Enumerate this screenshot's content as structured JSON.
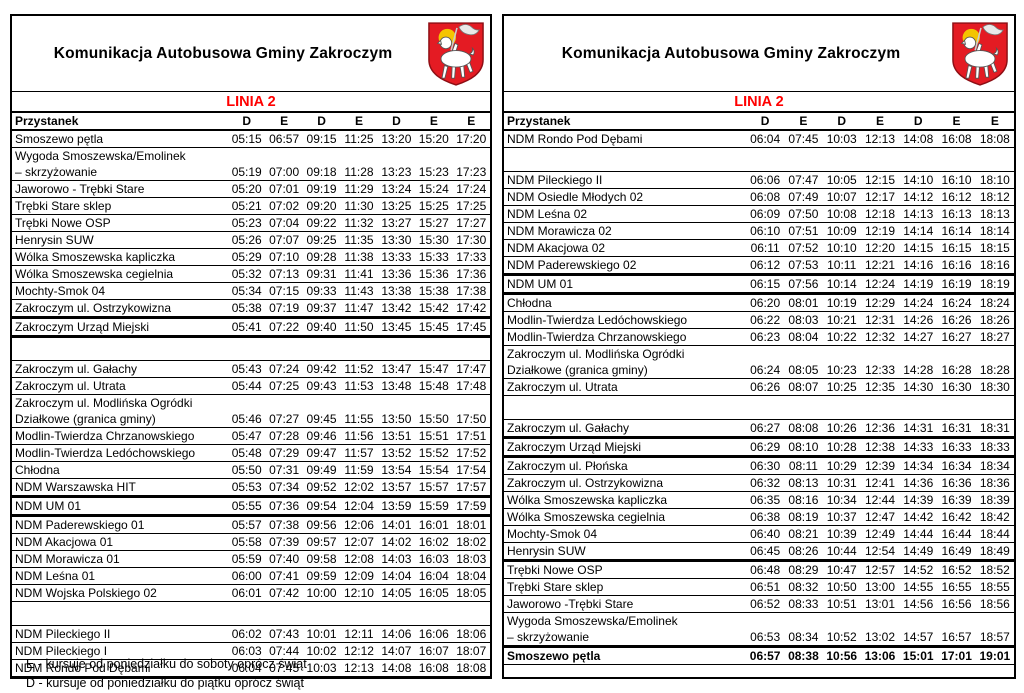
{
  "accent_red": "#ff0000",
  "crest": {
    "shield": "#e41b23",
    "shield_border": "#8d0e14",
    "halo": "#f4c400",
    "lamb": "#ffffff",
    "banner": "#e9e9e9",
    "outline": "#555555"
  },
  "footnotes": [
    "E - kursuje od poniedziałku do soboty oprócz świąt",
    "D - kursuje od poniedziałku do piątku oprócz świąt"
  ],
  "panels": [
    {
      "title": "Komunikacja Autobusowa Gminy Zakroczym",
      "line_label": "LINIA 2",
      "table": {
        "stop_header": "Przystanek",
        "day_codes": [
          "D",
          "E",
          "D",
          "E",
          "D",
          "E",
          "E"
        ],
        "rows": [
          {
            "stop": "Smoszewo pętla",
            "times": [
              "05:15",
              "06:57",
              "09:15",
              "11:25",
              "13:20",
              "15:20",
              "17:20"
            ]
          },
          {
            "lines": [
              "Wygoda Smoszewska/Emolinek",
              "– skrzyżowanie"
            ],
            "times": [
              "05:19",
              "07:00",
              "09:18",
              "11:28",
              "13:23",
              "15:23",
              "17:23"
            ]
          },
          {
            "stop": "Jaworowo - Trębki Stare",
            "times": [
              "05:20",
              "07:01",
              "09:19",
              "11:29",
              "13:24",
              "15:24",
              "17:24"
            ]
          },
          {
            "stop": "Trębki Stare sklep",
            "times": [
              "05:21",
              "07:02",
              "09:20",
              "11:30",
              "13:25",
              "15:25",
              "17:25"
            ]
          },
          {
            "stop": "Trębki Nowe OSP",
            "times": [
              "05:23",
              "07:04",
              "09:22",
              "11:32",
              "13:27",
              "15:27",
              "17:27"
            ]
          },
          {
            "stop": "Henrysin SUW",
            "times": [
              "05:26",
              "07:07",
              "09:25",
              "11:35",
              "13:30",
              "15:30",
              "17:30"
            ]
          },
          {
            "stop": "Wólka Smoszewska kapliczka",
            "times": [
              "05:29",
              "07:10",
              "09:28",
              "11:38",
              "13:33",
              "15:33",
              "17:33"
            ]
          },
          {
            "stop": "Wólka Smoszewska cegielnia",
            "times": [
              "05:32",
              "07:13",
              "09:31",
              "11:41",
              "13:36",
              "15:36",
              "17:36"
            ]
          },
          {
            "stop": "Mochty-Smok 04",
            "times": [
              "05:34",
              "07:15",
              "09:33",
              "11:43",
              "13:38",
              "15:38",
              "17:38"
            ]
          },
          {
            "stop": "Zakroczym ul. Ostrzykowizna",
            "times": [
              "05:38",
              "07:19",
              "09:37",
              "11:47",
              "13:42",
              "15:42",
              "17:42"
            ]
          },
          {
            "stop": "Zakroczym Urząd Miejski",
            "emph": true,
            "times": [
              "05:41",
              "07:22",
              "09:40",
              "11:50",
              "13:45",
              "15:45",
              "17:45"
            ]
          },
          {
            "gap": true
          },
          {
            "stop": "Zakroczym ul. Gałachy",
            "times": [
              "05:43",
              "07:24",
              "09:42",
              "11:52",
              "13:47",
              "15:47",
              "17:47"
            ]
          },
          {
            "stop": "Zakroczym ul. Utrata",
            "times": [
              "05:44",
              "07:25",
              "09:43",
              "11:53",
              "13:48",
              "15:48",
              "17:48"
            ]
          },
          {
            "lines": [
              "Zakroczym ul. Modlińska Ogródki",
              "Działkowe (granica gminy)"
            ],
            "times": [
              "05:46",
              "07:27",
              "09:45",
              "11:55",
              "13:50",
              "15:50",
              "17:50"
            ]
          },
          {
            "stop": "Modlin-Twierdza Chrzanowskiego",
            "times": [
              "05:47",
              "07:28",
              "09:46",
              "11:56",
              "13:51",
              "15:51",
              "17:51"
            ]
          },
          {
            "stop": "Modlin-Twierdza Ledóchowskiego",
            "times": [
              "05:48",
              "07:29",
              "09:47",
              "11:57",
              "13:52",
              "15:52",
              "17:52"
            ]
          },
          {
            "stop": "Chłodna",
            "times": [
              "05:50",
              "07:31",
              "09:49",
              "11:59",
              "13:54",
              "15:54",
              "17:54"
            ]
          },
          {
            "stop": "NDM Warszawska HIT",
            "times": [
              "05:53",
              "07:34",
              "09:52",
              "12:02",
              "13:57",
              "15:57",
              "17:57"
            ]
          },
          {
            "stop": "NDM UM 01",
            "emph": true,
            "times": [
              "05:55",
              "07:36",
              "09:54",
              "12:04",
              "13:59",
              "15:59",
              "17:59"
            ]
          },
          {
            "stop": "NDM Paderewskiego 01",
            "times": [
              "05:57",
              "07:38",
              "09:56",
              "12:06",
              "14:01",
              "16:01",
              "18:01"
            ]
          },
          {
            "stop": "NDM Akacjowa 01",
            "times": [
              "05:58",
              "07:39",
              "09:57",
              "12:07",
              "14:02",
              "16:02",
              "18:02"
            ]
          },
          {
            "stop": "NDM Morawicza 01",
            "times": [
              "05:59",
              "07:40",
              "09:58",
              "12:08",
              "14:03",
              "16:03",
              "18:03"
            ]
          },
          {
            "stop": "NDM Leśna 01",
            "times": [
              "06:00",
              "07:41",
              "09:59",
              "12:09",
              "14:04",
              "16:04",
              "18:04"
            ]
          },
          {
            "stop": "NDM Wojska Polskiego 02",
            "times": [
              "06:01",
              "07:42",
              "10:00",
              "12:10",
              "14:05",
              "16:05",
              "18:05"
            ]
          },
          {
            "gap": true
          },
          {
            "stop": "NDM Pileckiego II",
            "times": [
              "06:02",
              "07:43",
              "10:01",
              "12:11",
              "14:06",
              "16:06",
              "18:06"
            ]
          },
          {
            "stop": "NDM Pileckiego I",
            "times": [
              "06:03",
              "07:44",
              "10:02",
              "12:12",
              "14:07",
              "16:07",
              "18:07"
            ]
          },
          {
            "stop": "NDM Rondo Pod Dębami",
            "times": [
              "06:04",
              "07:45",
              "10:03",
              "12:13",
              "14:08",
              "16:08",
              "18:08"
            ]
          }
        ]
      }
    },
    {
      "title": "Komunikacja Autobusowa Gminy Zakroczym",
      "line_label": "LINIA 2",
      "table": {
        "stop_header": "Przystanek",
        "day_codes": [
          "D",
          "E",
          "D",
          "E",
          "D",
          "E",
          "E"
        ],
        "rows": [
          {
            "stop": "NDM Rondo Pod Dębami",
            "times": [
              "06:04",
              "07:45",
              "10:03",
              "12:13",
              "14:08",
              "16:08",
              "18:08"
            ]
          },
          {
            "gap": true
          },
          {
            "stop": "NDM Pileckiego II",
            "times": [
              "06:06",
              "07:47",
              "10:05",
              "12:15",
              "14:10",
              "16:10",
              "18:10"
            ]
          },
          {
            "stop": "NDM Osiedle Młodych 02",
            "times": [
              "06:08",
              "07:49",
              "10:07",
              "12:17",
              "14:12",
              "16:12",
              "18:12"
            ]
          },
          {
            "stop": "NDM Leśna 02",
            "times": [
              "06:09",
              "07:50",
              "10:08",
              "12:18",
              "14:13",
              "16:13",
              "18:13"
            ]
          },
          {
            "stop": "NDM Morawicza 02",
            "times": [
              "06:10",
              "07:51",
              "10:09",
              "12:19",
              "14:14",
              "16:14",
              "18:14"
            ]
          },
          {
            "stop": "NDM Akacjowa 02",
            "times": [
              "06:11",
              "07:52",
              "10:10",
              "12:20",
              "14:15",
              "16:15",
              "18:15"
            ]
          },
          {
            "stop": "NDM Paderewskiego 02",
            "times": [
              "06:12",
              "07:53",
              "10:11",
              "12:21",
              "14:16",
              "16:16",
              "18:16"
            ]
          },
          {
            "stop": "NDM UM 01",
            "emph": true,
            "times": [
              "06:15",
              "07:56",
              "10:14",
              "12:24",
              "14:19",
              "16:19",
              "18:19"
            ]
          },
          {
            "stop": "Chłodna",
            "times": [
              "06:20",
              "08:01",
              "10:19",
              "12:29",
              "14:24",
              "16:24",
              "18:24"
            ]
          },
          {
            "stop": "Modlin-Twierdza Ledóchowskiego",
            "times": [
              "06:22",
              "08:03",
              "10:21",
              "12:31",
              "14:26",
              "16:26",
              "18:26"
            ]
          },
          {
            "stop": "Modlin-Twierdza Chrzanowskiego",
            "times": [
              "06:23",
              "08:04",
              "10:22",
              "12:32",
              "14:27",
              "16:27",
              "18:27"
            ]
          },
          {
            "lines": [
              "Zakroczym ul. Modlińska Ogródki",
              "Działkowe (granica gminy)"
            ],
            "times": [
              "06:24",
              "08:05",
              "10:23",
              "12:33",
              "14:28",
              "16:28",
              "18:28"
            ]
          },
          {
            "stop": "Zakroczym ul. Utrata",
            "times": [
              "06:26",
              "08:07",
              "10:25",
              "12:35",
              "14:30",
              "16:30",
              "18:30"
            ]
          },
          {
            "gap": true
          },
          {
            "stop": "Zakroczym ul. Gałachy",
            "times": [
              "06:27",
              "08:08",
              "10:26",
              "12:36",
              "14:31",
              "16:31",
              "18:31"
            ]
          },
          {
            "stop": "Zakroczym Urząd Miejski",
            "emph": true,
            "times": [
              "06:29",
              "08:10",
              "10:28",
              "12:38",
              "14:33",
              "16:33",
              "18:33"
            ]
          },
          {
            "stop": "Zakroczym ul. Płońska",
            "times": [
              "06:30",
              "08:11",
              "10:29",
              "12:39",
              "14:34",
              "16:34",
              "18:34"
            ]
          },
          {
            "stop": "Zakroczym ul. Ostrzykowizna",
            "times": [
              "06:32",
              "08:13",
              "10:31",
              "12:41",
              "14:36",
              "16:36",
              "18:36"
            ]
          },
          {
            "stop": "Wólka Smoszewska kapliczka",
            "times": [
              "06:35",
              "08:16",
              "10:34",
              "12:44",
              "14:39",
              "16:39",
              "18:39"
            ]
          },
          {
            "stop": "Wólka Smoszewska cegielnia",
            "times": [
              "06:38",
              "08:19",
              "10:37",
              "12:47",
              "14:42",
              "16:42",
              "18:42"
            ]
          },
          {
            "stop": "Mochty-Smok 04",
            "times": [
              "06:40",
              "08:21",
              "10:39",
              "12:49",
              "14:44",
              "16:44",
              "18:44"
            ]
          },
          {
            "stop": "Henrysin SUW",
            "times": [
              "06:45",
              "08:26",
              "10:44",
              "12:54",
              "14:49",
              "16:49",
              "18:49"
            ]
          },
          {
            "stop": "Trębki Nowe OSP",
            "btop": true,
            "times": [
              "06:48",
              "08:29",
              "10:47",
              "12:57",
              "14:52",
              "16:52",
              "18:52"
            ]
          },
          {
            "stop": "Trębki Stare sklep",
            "times": [
              "06:51",
              "08:32",
              "10:50",
              "13:00",
              "14:55",
              "16:55",
              "18:55"
            ]
          },
          {
            "stop": "Jaworowo -Trębki Stare",
            "times": [
              "06:52",
              "08:33",
              "10:51",
              "13:01",
              "14:56",
              "16:56",
              "18:56"
            ]
          },
          {
            "lines": [
              "Wygoda Smoszewska/Emolinek",
              "– skrzyżowanie"
            ],
            "times": [
              "06:53",
              "08:34",
              "10:52",
              "13:02",
              "14:57",
              "16:57",
              "18:57"
            ]
          },
          {
            "stop": "Smoszewo pętla",
            "bold": true,
            "btop": true,
            "times": [
              "06:57",
              "08:38",
              "10:56",
              "13:06",
              "15:01",
              "17:01",
              "19:01"
            ]
          }
        ]
      }
    }
  ]
}
